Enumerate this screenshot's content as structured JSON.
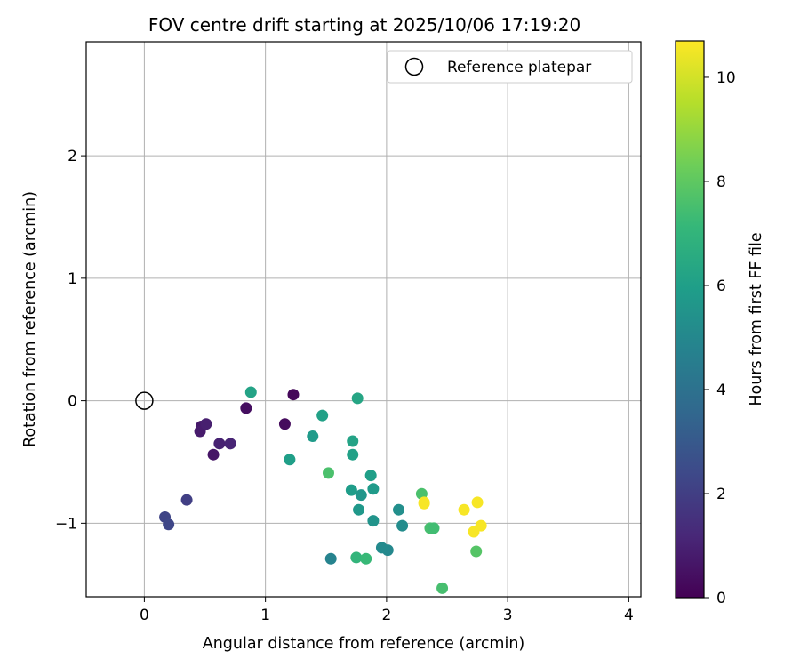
{
  "chart_data": {
    "type": "scatter",
    "title": "FOV centre drift starting at 2025/10/06 17:19:20",
    "xlabel": "Angular distance from reference (arcmin)",
    "ylabel": "Rotation from reference (arcmin)",
    "xlim": [
      -0.48,
      4.1
    ],
    "ylim": [
      -1.6,
      2.93
    ],
    "xticks": [
      0,
      1,
      2,
      3,
      4
    ],
    "yticks": [
      -1,
      0,
      1,
      2
    ],
    "xtick_labels": [
      "0",
      "1",
      "2",
      "3",
      "4"
    ],
    "ytick_labels": [
      "−1",
      "0",
      "1",
      "2"
    ],
    "grid": true,
    "legend": {
      "position": "top-right",
      "label": "Reference platepar"
    },
    "reference_point": {
      "x": 0,
      "y": 0
    },
    "colorbar": {
      "label": "Hours from first FF file",
      "range": [
        0,
        10.7
      ],
      "ticks": [
        0,
        2,
        4,
        6,
        8,
        10
      ],
      "tick_labels": [
        "0",
        "2",
        "4",
        "6",
        "8",
        "10"
      ],
      "colormap": [
        "#440154",
        "#482878",
        "#3e4989",
        "#31688e",
        "#26828e",
        "#1f9e89",
        "#35b779",
        "#6ece58",
        "#b5de2b",
        "#fde725"
      ]
    },
    "points": [
      {
        "x": 1.23,
        "y": 0.05,
        "hours": 0.2
      },
      {
        "x": 1.16,
        "y": -0.19,
        "hours": 0.3
      },
      {
        "x": 0.84,
        "y": -0.06,
        "hours": 0.4
      },
      {
        "x": 0.57,
        "y": -0.44,
        "hours": 0.6
      },
      {
        "x": 0.47,
        "y": -0.21,
        "hours": 0.7
      },
      {
        "x": 0.46,
        "y": -0.25,
        "hours": 0.8
      },
      {
        "x": 0.51,
        "y": -0.19,
        "hours": 0.9
      },
      {
        "x": 0.62,
        "y": -0.35,
        "hours": 1.0
      },
      {
        "x": 0.71,
        "y": -0.35,
        "hours": 1.1
      },
      {
        "x": 0.35,
        "y": -0.81,
        "hours": 2.0
      },
      {
        "x": 0.17,
        "y": -0.95,
        "hours": 2.2
      },
      {
        "x": 0.2,
        "y": -1.01,
        "hours": 2.3
      },
      {
        "x": 1.54,
        "y": -1.29,
        "hours": 4.8
      },
      {
        "x": 2.01,
        "y": -1.22,
        "hours": 5.0
      },
      {
        "x": 1.96,
        "y": -1.2,
        "hours": 5.1
      },
      {
        "x": 2.13,
        "y": -1.02,
        "hours": 5.2
      },
      {
        "x": 2.1,
        "y": -0.89,
        "hours": 5.3
      },
      {
        "x": 1.89,
        "y": -0.98,
        "hours": 5.5
      },
      {
        "x": 1.79,
        "y": -0.77,
        "hours": 5.6
      },
      {
        "x": 1.77,
        "y": -0.89,
        "hours": 5.7
      },
      {
        "x": 1.89,
        "y": -0.72,
        "hours": 5.8
      },
      {
        "x": 1.71,
        "y": -0.73,
        "hours": 5.9
      },
      {
        "x": 1.87,
        "y": -0.61,
        "hours": 6.0
      },
      {
        "x": 1.72,
        "y": -0.44,
        "hours": 6.1
      },
      {
        "x": 1.72,
        "y": -0.33,
        "hours": 6.2
      },
      {
        "x": 1.39,
        "y": -0.29,
        "hours": 5.8
      },
      {
        "x": 1.2,
        "y": -0.48,
        "hours": 6.0
      },
      {
        "x": 1.47,
        "y": -0.12,
        "hours": 6.1
      },
      {
        "x": 1.76,
        "y": 0.02,
        "hours": 6.3
      },
      {
        "x": 0.88,
        "y": 0.07,
        "hours": 6.2
      },
      {
        "x": 1.52,
        "y": -0.59,
        "hours": 7.6
      },
      {
        "x": 1.75,
        "y": -1.28,
        "hours": 7.0
      },
      {
        "x": 1.83,
        "y": -1.29,
        "hours": 7.2
      },
      {
        "x": 2.36,
        "y": -1.04,
        "hours": 7.5
      },
      {
        "x": 2.39,
        "y": -1.04,
        "hours": 7.4
      },
      {
        "x": 2.29,
        "y": -0.76,
        "hours": 7.6
      },
      {
        "x": 2.46,
        "y": -1.53,
        "hours": 7.5
      },
      {
        "x": 2.74,
        "y": -1.23,
        "hours": 7.8
      },
      {
        "x": 2.31,
        "y": -0.84,
        "hours": 10.6
      },
      {
        "x": 2.31,
        "y": -0.83,
        "hours": 10.6
      },
      {
        "x": 2.64,
        "y": -0.89,
        "hours": 10.6
      },
      {
        "x": 2.75,
        "y": -0.83,
        "hours": 10.6
      },
      {
        "x": 2.72,
        "y": -1.07,
        "hours": 10.6
      },
      {
        "x": 2.78,
        "y": -1.02,
        "hours": 10.6
      }
    ]
  }
}
